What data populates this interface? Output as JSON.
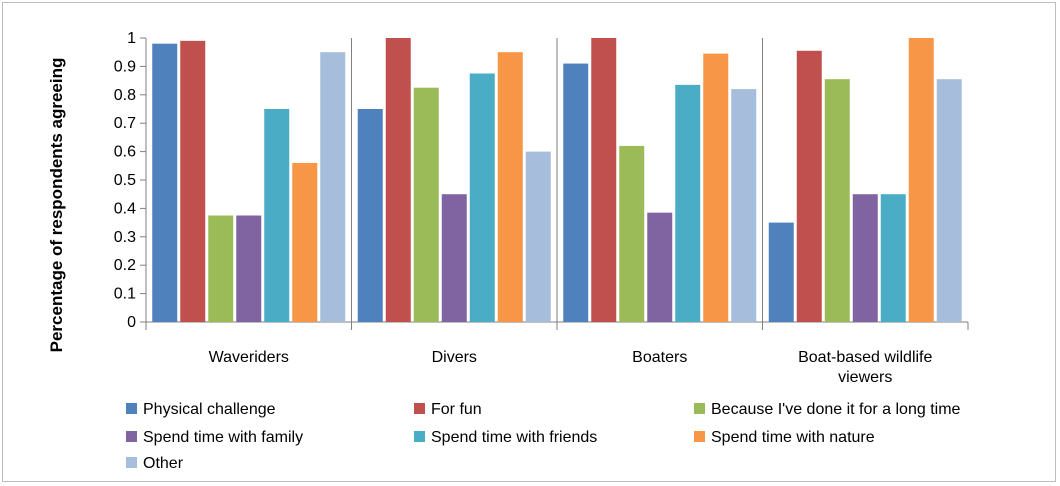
{
  "chart_data": {
    "type": "bar",
    "title": "",
    "xlabel": "",
    "ylabel": "Percentage of respondents agreeing",
    "ylim": [
      0,
      1
    ],
    "yticks": [
      "0",
      "0.1",
      "0.2",
      "0.3",
      "0.4",
      "0.5",
      "0.6",
      "0.7",
      "0.8",
      "0.9",
      "1"
    ],
    "categories": [
      [
        "Waveriders"
      ],
      [
        "Divers"
      ],
      [
        "Boaters"
      ],
      [
        "Boat-based wildlife",
        "viewers"
      ]
    ],
    "series": [
      {
        "name": "Physical challenge",
        "color": "#4f81bd",
        "values": [
          0.98,
          0.75,
          0.91,
          0.35
        ]
      },
      {
        "name": "For fun",
        "color": "#c0504d",
        "values": [
          0.99,
          1.0,
          1.0,
          0.955
        ]
      },
      {
        "name": "Because I've done it for a long time",
        "color": "#9bbb59",
        "values": [
          0.375,
          0.825,
          0.62,
          0.855
        ]
      },
      {
        "name": "Spend time with family",
        "color": "#8064a2",
        "values": [
          0.375,
          0.45,
          0.385,
          0.45
        ]
      },
      {
        "name": "Spend time with friends",
        "color": "#4bacc6",
        "values": [
          0.75,
          0.875,
          0.835,
          0.45
        ]
      },
      {
        "name": "Spend time with nature",
        "color": "#f79646",
        "values": [
          0.56,
          0.95,
          0.945,
          1.0
        ]
      },
      {
        "name": "Other",
        "color": "#a6bddb",
        "values": [
          0.95,
          0.6,
          0.82,
          0.855
        ]
      }
    ],
    "grid": false,
    "legend_position": "bottom"
  }
}
